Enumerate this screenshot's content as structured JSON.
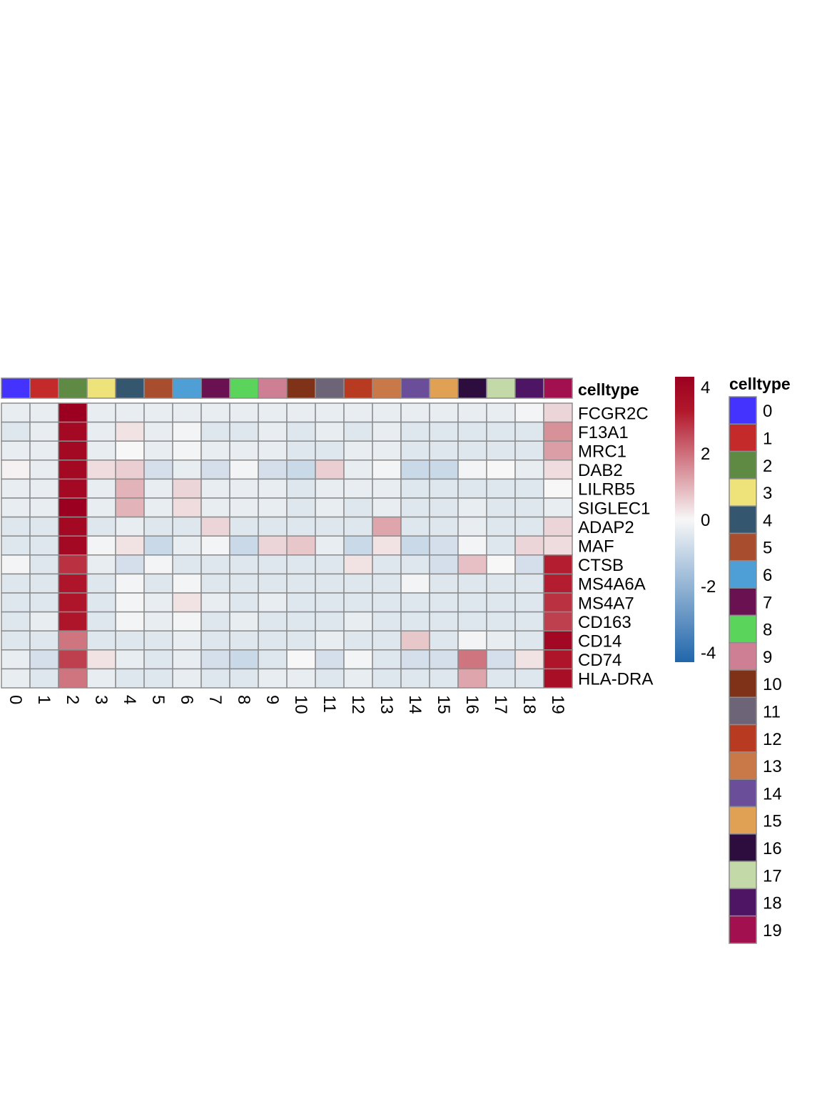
{
  "chart_data": {
    "type": "heatmap",
    "columns": [
      "0",
      "1",
      "2",
      "3",
      "4",
      "5",
      "6",
      "7",
      "8",
      "9",
      "10",
      "11",
      "12",
      "13",
      "14",
      "15",
      "16",
      "17",
      "18",
      "19"
    ],
    "rows": [
      "FCGR2C",
      "F13A1",
      "MRC1",
      "DAB2",
      "LILRB5",
      "SIGLEC1",
      "ADAP2",
      "MAF",
      "CTSB",
      "MS4A6A",
      "MS4A7",
      "CD163",
      "CD14",
      "CD74",
      "HLA-DRA"
    ],
    "values": [
      [
        -0.3,
        -0.3,
        4.3,
        -0.3,
        -0.3,
        -0.3,
        -0.3,
        -0.3,
        -0.3,
        -0.3,
        -0.3,
        -0.3,
        -0.3,
        -0.3,
        -0.3,
        -0.3,
        -0.3,
        -0.3,
        -0.1,
        0.5
      ],
      [
        -0.5,
        -0.3,
        3.9,
        -0.3,
        0.3,
        -0.3,
        -0.1,
        -0.5,
        -0.5,
        -0.3,
        -0.5,
        -0.3,
        -0.5,
        -0.3,
        -0.5,
        -0.5,
        -0.5,
        -0.5,
        -0.5,
        1.5
      ],
      [
        -0.3,
        -0.3,
        3.9,
        -0.3,
        0.0,
        -0.3,
        -0.1,
        -0.3,
        -0.3,
        -0.3,
        -0.5,
        -0.5,
        -0.3,
        -0.3,
        -0.5,
        -0.5,
        -0.5,
        -0.5,
        -0.5,
        1.3
      ],
      [
        0.1,
        -0.3,
        3.9,
        0.4,
        0.6,
        -0.7,
        -0.3,
        -0.7,
        -0.1,
        -0.7,
        -0.9,
        0.6,
        -0.3,
        -0.1,
        -0.9,
        -0.9,
        -0.1,
        0.0,
        -0.3,
        0.4
      ],
      [
        -0.3,
        -0.3,
        3.9,
        -0.3,
        1.0,
        -0.3,
        0.5,
        -0.3,
        -0.3,
        -0.3,
        -0.5,
        -0.3,
        -0.3,
        -0.3,
        -0.5,
        -0.5,
        -0.5,
        -0.5,
        -0.5,
        0.0
      ],
      [
        -0.3,
        -0.3,
        4.3,
        -0.3,
        1.0,
        -0.3,
        0.4,
        -0.3,
        -0.3,
        -0.3,
        -0.5,
        -0.3,
        -0.5,
        -0.3,
        -0.5,
        -0.5,
        -0.3,
        -0.5,
        -0.5,
        -0.3
      ],
      [
        -0.5,
        -0.5,
        3.9,
        -0.5,
        -0.3,
        -0.5,
        -0.5,
        0.5,
        -0.5,
        -0.5,
        -0.5,
        -0.5,
        -0.5,
        1.2,
        -0.5,
        -0.5,
        -0.3,
        -0.5,
        -0.5,
        0.5
      ],
      [
        -0.5,
        -0.5,
        3.9,
        -0.1,
        0.3,
        -0.9,
        -0.3,
        -0.1,
        -0.9,
        0.5,
        0.7,
        -0.3,
        -0.9,
        0.3,
        -0.9,
        -0.7,
        -0.1,
        -0.5,
        0.5,
        0.4
      ],
      [
        -0.1,
        -0.5,
        2.9,
        -0.3,
        -0.7,
        -0.1,
        -0.5,
        -0.5,
        -0.5,
        -0.5,
        -0.5,
        -0.5,
        0.3,
        -0.5,
        -0.5,
        -0.7,
        0.8,
        0.0,
        -0.7,
        3.2
      ],
      [
        -0.5,
        -0.5,
        3.4,
        -0.5,
        -0.1,
        -0.5,
        -0.1,
        -0.5,
        -0.5,
        -0.5,
        -0.5,
        -0.5,
        -0.5,
        -0.5,
        -0.1,
        -0.5,
        -0.5,
        -0.5,
        -0.5,
        3.2
      ],
      [
        -0.5,
        -0.5,
        3.4,
        -0.5,
        -0.1,
        -0.3,
        0.3,
        -0.3,
        -0.5,
        -0.3,
        -0.5,
        -0.5,
        -0.5,
        -0.5,
        -0.5,
        -0.5,
        -0.5,
        -0.5,
        -0.5,
        2.9
      ],
      [
        -0.5,
        -0.3,
        3.4,
        -0.5,
        -0.1,
        -0.3,
        -0.1,
        -0.5,
        -0.3,
        -0.5,
        -0.5,
        -0.5,
        -0.3,
        -0.5,
        -0.5,
        -0.5,
        -0.5,
        -0.5,
        -0.5,
        2.7
      ],
      [
        -0.5,
        -0.5,
        1.9,
        -0.5,
        -0.5,
        -0.5,
        -0.3,
        -0.5,
        -0.5,
        -0.5,
        -0.5,
        -0.3,
        -0.5,
        -0.5,
        0.7,
        -0.5,
        -0.1,
        -0.3,
        -0.5,
        4.0
      ],
      [
        -0.3,
        -0.7,
        2.7,
        0.3,
        -0.3,
        -0.5,
        -0.3,
        -0.7,
        -0.9,
        -0.5,
        0.0,
        -0.7,
        -0.1,
        -0.5,
        -0.7,
        -0.7,
        1.9,
        -0.7,
        0.3,
        3.4
      ],
      [
        -0.3,
        -0.5,
        1.9,
        -0.3,
        -0.5,
        -0.5,
        -0.3,
        -0.5,
        -0.5,
        -0.3,
        -0.3,
        -0.5,
        -0.3,
        -0.5,
        -0.5,
        -0.5,
        1.2,
        -0.5,
        -0.5,
        3.7
      ]
    ],
    "color_scale": {
      "range": [
        -4.3,
        4.3
      ],
      "stops": [
        "#2166ac",
        "#f7f7f7",
        "#b2182b",
        "#9b0020"
      ],
      "ticks": [
        "4",
        "2",
        "0",
        "-2",
        "-4"
      ]
    },
    "annotation": {
      "title": "celltype",
      "legend_title": "celltype",
      "categories": [
        "0",
        "1",
        "2",
        "3",
        "4",
        "5",
        "6",
        "7",
        "8",
        "9",
        "10",
        "11",
        "12",
        "13",
        "14",
        "15",
        "16",
        "17",
        "18",
        "19"
      ],
      "colors": [
        "#4433ff",
        "#c42a2a",
        "#5f8a44",
        "#eee27a",
        "#35566f",
        "#a84d2e",
        "#4e9fd6",
        "#6a1152",
        "#5ad45a",
        "#cf7f94",
        "#7f3218",
        "#6e6478",
        "#b83a20",
        "#c97948",
        "#6a4e9a",
        "#e0a155",
        "#2c0d3d",
        "#c3d9a8",
        "#4f1565",
        "#a3104f"
      ]
    }
  }
}
